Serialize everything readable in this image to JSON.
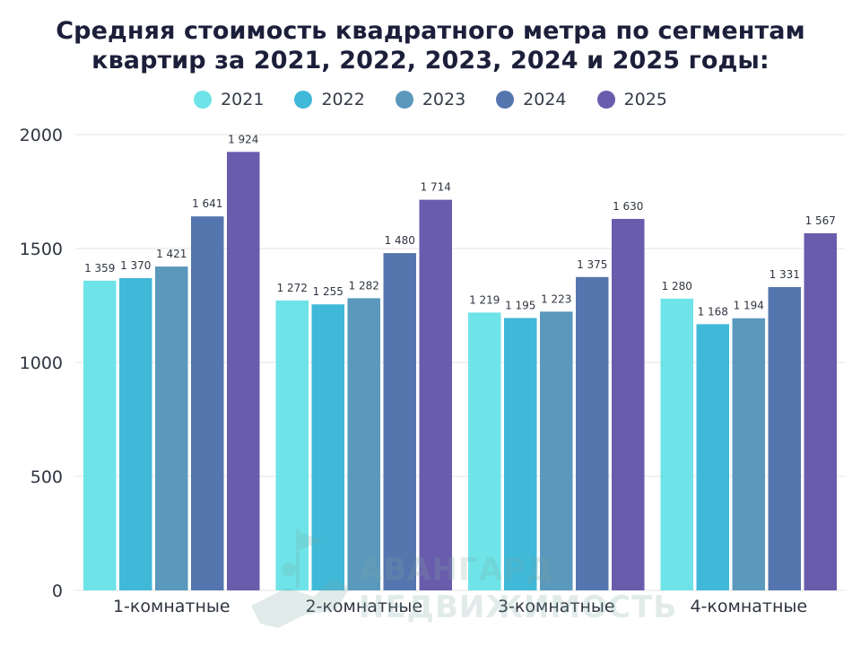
{
  "chart_data": {
    "type": "bar",
    "title": "Средняя стоимость квадратного метра по сегментам квартир за 2021, 2022, 2023, 2024 и 2025 годы:",
    "title_lines": [
      "Средняя стоимость квадратного метра по сегментам",
      "квартир за 2021, 2022, 2023, 2024 и 2025 годы:"
    ],
    "categories": [
      "1-комнатные",
      "2-комнатные",
      "3-комнатные",
      "4-комнатные"
    ],
    "series": [
      {
        "name": "2021",
        "color": "#6ee3e8",
        "values": [
          1359,
          1272,
          1219,
          1280
        ]
      },
      {
        "name": "2022",
        "color": "#40b8d8",
        "values": [
          1370,
          1255,
          1195,
          1168
        ]
      },
      {
        "name": "2023",
        "color": "#5a98bc",
        "values": [
          1421,
          1282,
          1223,
          1194
        ]
      },
      {
        "name": "2024",
        "color": "#5575ae",
        "values": [
          1641,
          1480,
          1375,
          1331
        ]
      },
      {
        "name": "2025",
        "color": "#6a5cad",
        "values": [
          1924,
          1714,
          1630,
          1567
        ]
      }
    ],
    "data_labels": [
      [
        "1 359",
        "1 272",
        "1 219",
        "1 280"
      ],
      [
        "1 370",
        "1 255",
        "1 195",
        "1 168"
      ],
      [
        "1 421",
        "1 282",
        "1 223",
        "1 194"
      ],
      [
        "1 641",
        "1 480",
        "1 375",
        "1 331"
      ],
      [
        "1 924",
        "1 714",
        "1 630",
        "1 567"
      ]
    ],
    "y_ticks": [
      0,
      500,
      1000,
      1500,
      2000
    ],
    "ylim": [
      0,
      2000
    ],
    "xlabel": "",
    "ylabel": "",
    "grid": true,
    "legend_position": "top-center"
  },
  "watermark": {
    "line1": "АВАНГАРД",
    "line2": "НЕДВИЖИМОСТЬ"
  }
}
